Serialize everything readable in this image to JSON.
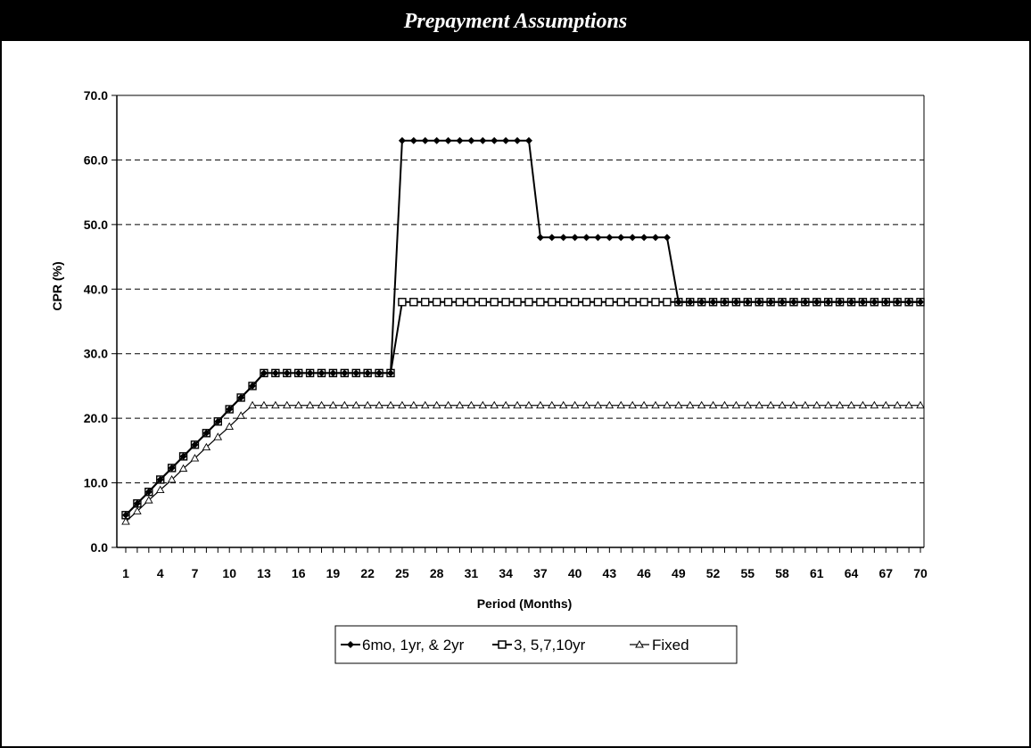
{
  "header": {
    "title": "Prepayment Assumptions"
  },
  "chart_data": {
    "type": "line",
    "title": "",
    "xlabel": "Period (Months)",
    "ylabel": "CPR (%)",
    "xlim": [
      1,
      70
    ],
    "ylim": [
      0,
      70
    ],
    "yticks": [
      "0.0",
      "10.0",
      "20.0",
      "30.0",
      "40.0",
      "50.0",
      "60.0",
      "70.0"
    ],
    "xtick_labels": [
      "1",
      "4",
      "7",
      "10",
      "13",
      "16",
      "19",
      "22",
      "25",
      "28",
      "31",
      "34",
      "37",
      "40",
      "43",
      "46",
      "49",
      "52",
      "55",
      "58",
      "61",
      "64",
      "67",
      "70"
    ],
    "grid": "horizontal dashed",
    "legend_position": "bottom",
    "series": [
      {
        "name": "6mo, 1yr, & 2yr",
        "marker": "diamond",
        "values": [
          5.0,
          6.8,
          8.6,
          10.5,
          12.3,
          14.1,
          15.9,
          17.7,
          19.5,
          21.4,
          23.2,
          25.0,
          27,
          27,
          27,
          27,
          27,
          27,
          27,
          27,
          27,
          27,
          27,
          27,
          63,
          63,
          63,
          63,
          63,
          63,
          63,
          63,
          63,
          63,
          63,
          63,
          48,
          48,
          48,
          48,
          48,
          48,
          48,
          48,
          48,
          48,
          48,
          48,
          38,
          38,
          38,
          38,
          38,
          38,
          38,
          38,
          38,
          38,
          38,
          38,
          38,
          38,
          38,
          38,
          38,
          38,
          38,
          38,
          38,
          38
        ]
      },
      {
        "name": "3, 5,7,10yr",
        "marker": "square",
        "values": [
          5.0,
          6.8,
          8.6,
          10.5,
          12.3,
          14.1,
          15.9,
          17.7,
          19.5,
          21.4,
          23.2,
          25.0,
          27,
          27,
          27,
          27,
          27,
          27,
          27,
          27,
          27,
          27,
          27,
          27,
          38,
          38,
          38,
          38,
          38,
          38,
          38,
          38,
          38,
          38,
          38,
          38,
          38,
          38,
          38,
          38,
          38,
          38,
          38,
          38,
          38,
          38,
          38,
          38,
          38,
          38,
          38,
          38,
          38,
          38,
          38,
          38,
          38,
          38,
          38,
          38,
          38,
          38,
          38,
          38,
          38,
          38,
          38,
          38,
          38,
          38
        ]
      },
      {
        "name": "Fixed",
        "marker": "triangle",
        "values": [
          4.0,
          5.6,
          7.3,
          8.9,
          10.5,
          12.2,
          13.8,
          15.5,
          17.1,
          18.7,
          20.4,
          22,
          22,
          22,
          22,
          22,
          22,
          22,
          22,
          22,
          22,
          22,
          22,
          22,
          22,
          22,
          22,
          22,
          22,
          22,
          22,
          22,
          22,
          22,
          22,
          22,
          22,
          22,
          22,
          22,
          22,
          22,
          22,
          22,
          22,
          22,
          22,
          22,
          22,
          22,
          22,
          22,
          22,
          22,
          22,
          22,
          22,
          22,
          22,
          22,
          22,
          22,
          22,
          22,
          22,
          22,
          22,
          22,
          22,
          22
        ]
      }
    ]
  }
}
